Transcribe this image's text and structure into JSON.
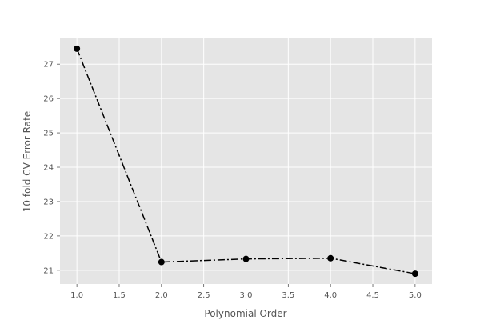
{
  "chart_data": {
    "type": "line",
    "title": "",
    "xlabel": "Polynomial Order",
    "ylabel": "10 fold CV Error Rate",
    "x": [
      1.0,
      2.0,
      3.0,
      4.0,
      5.0
    ],
    "series": [
      {
        "values": [
          27.45,
          21.24,
          21.33,
          21.35,
          20.9
        ],
        "color": "#000000",
        "line_style": "dash-dot",
        "marker": "circle"
      }
    ],
    "xlim": [
      0.8,
      5.2
    ],
    "ylim": [
      20.6,
      27.75
    ],
    "xticks": [
      1.0,
      1.5,
      2.0,
      2.5,
      3.0,
      3.5,
      4.0,
      4.5,
      5.0
    ],
    "xtick_labels": [
      "1.0",
      "1.5",
      "2.0",
      "2.5",
      "3.0",
      "3.5",
      "4.0",
      "4.5",
      "5.0"
    ],
    "yticks": [
      21,
      22,
      23,
      24,
      25,
      26,
      27
    ],
    "ytick_labels": [
      "21",
      "22",
      "23",
      "24",
      "25",
      "26",
      "27"
    ],
    "grid": true,
    "style": {
      "plot_background": "#e5e5e5",
      "grid_color": "#ffffff",
      "text_color": "#555555"
    }
  }
}
